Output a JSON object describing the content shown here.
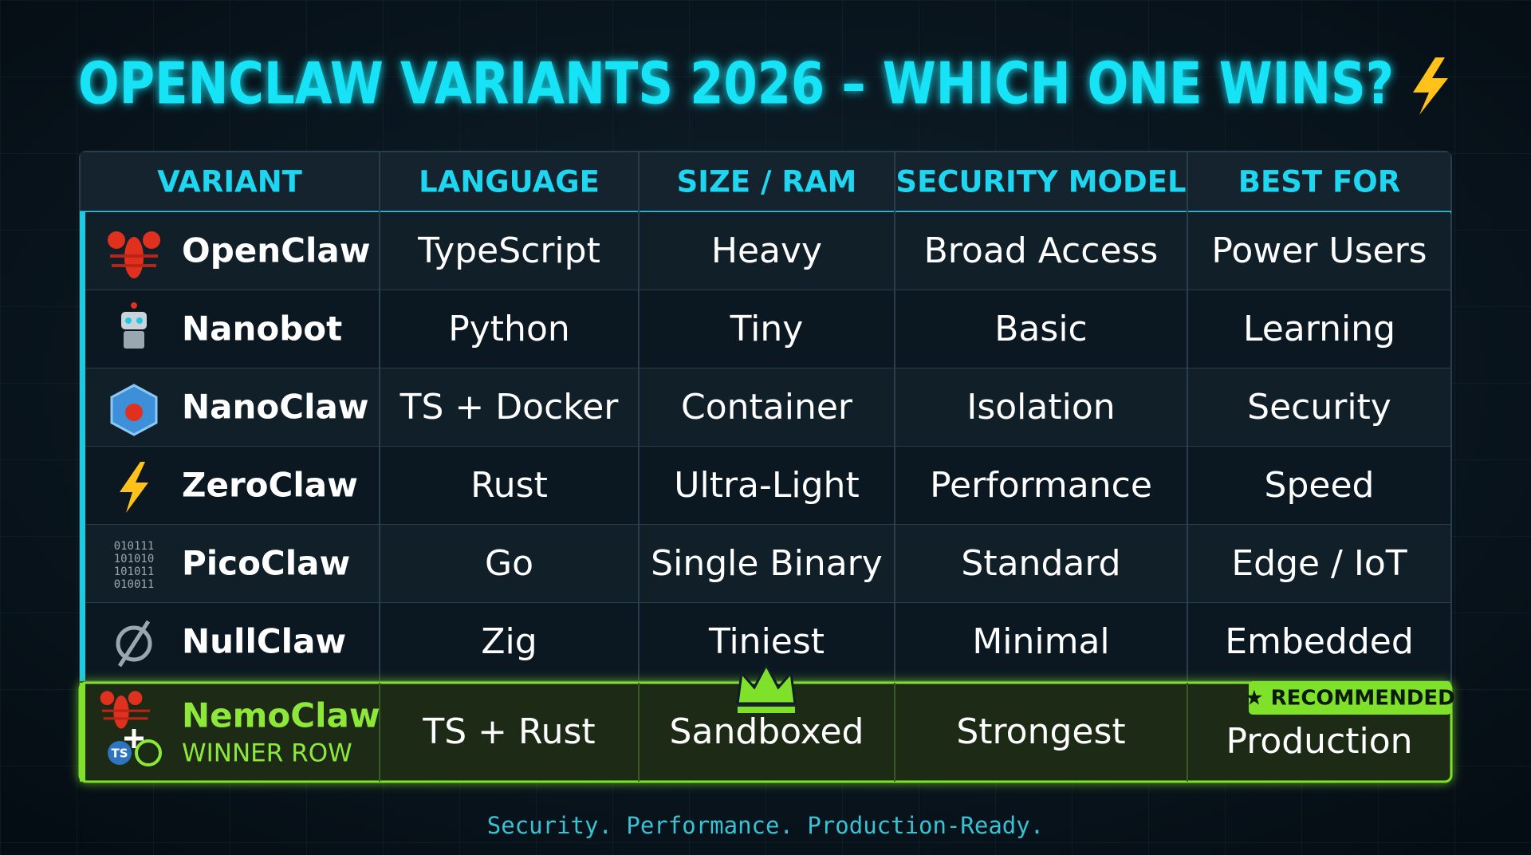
{
  "title": "OPENCLAW VARIANTS 2026 – WHICH ONE WINS?",
  "table": {
    "headers": [
      "VARIANT",
      "LANGUAGE",
      "SIZE / RAM",
      "SECURITY MODEL",
      "BEST FOR"
    ],
    "rows": [
      [
        "OpenClaw",
        "TypeScript",
        "Heavy",
        "Broad Access",
        "Power Users"
      ],
      [
        "Nanobot",
        "Python",
        "Tiny",
        "Basic",
        "Learning"
      ],
      [
        "NanoClaw",
        "TS + Docker",
        "Container",
        "Isolation",
        "Security"
      ],
      [
        "ZeroClaw",
        "Rust",
        "Ultra-Light",
        "Performance",
        "Speed"
      ],
      [
        "PicoClaw",
        "Go",
        "Single Binary",
        "Standard",
        "Edge / IoT"
      ],
      [
        "NullClaw",
        "Zig",
        "Tiniest",
        "Minimal",
        "Embedded"
      ]
    ]
  },
  "winner": {
    "cells": [
      "NemoClaw",
      "TS + Rust",
      "Sandboxed",
      "Strongest",
      "Production"
    ],
    "tag": "WINNER ROW",
    "badge": "★ RECOMMENDED",
    "icon_text": "TS"
  },
  "pico_icon": [
    "010111",
    "101010",
    "101011",
    "010011"
  ],
  "footer": "Security. Performance. Production-Ready."
}
